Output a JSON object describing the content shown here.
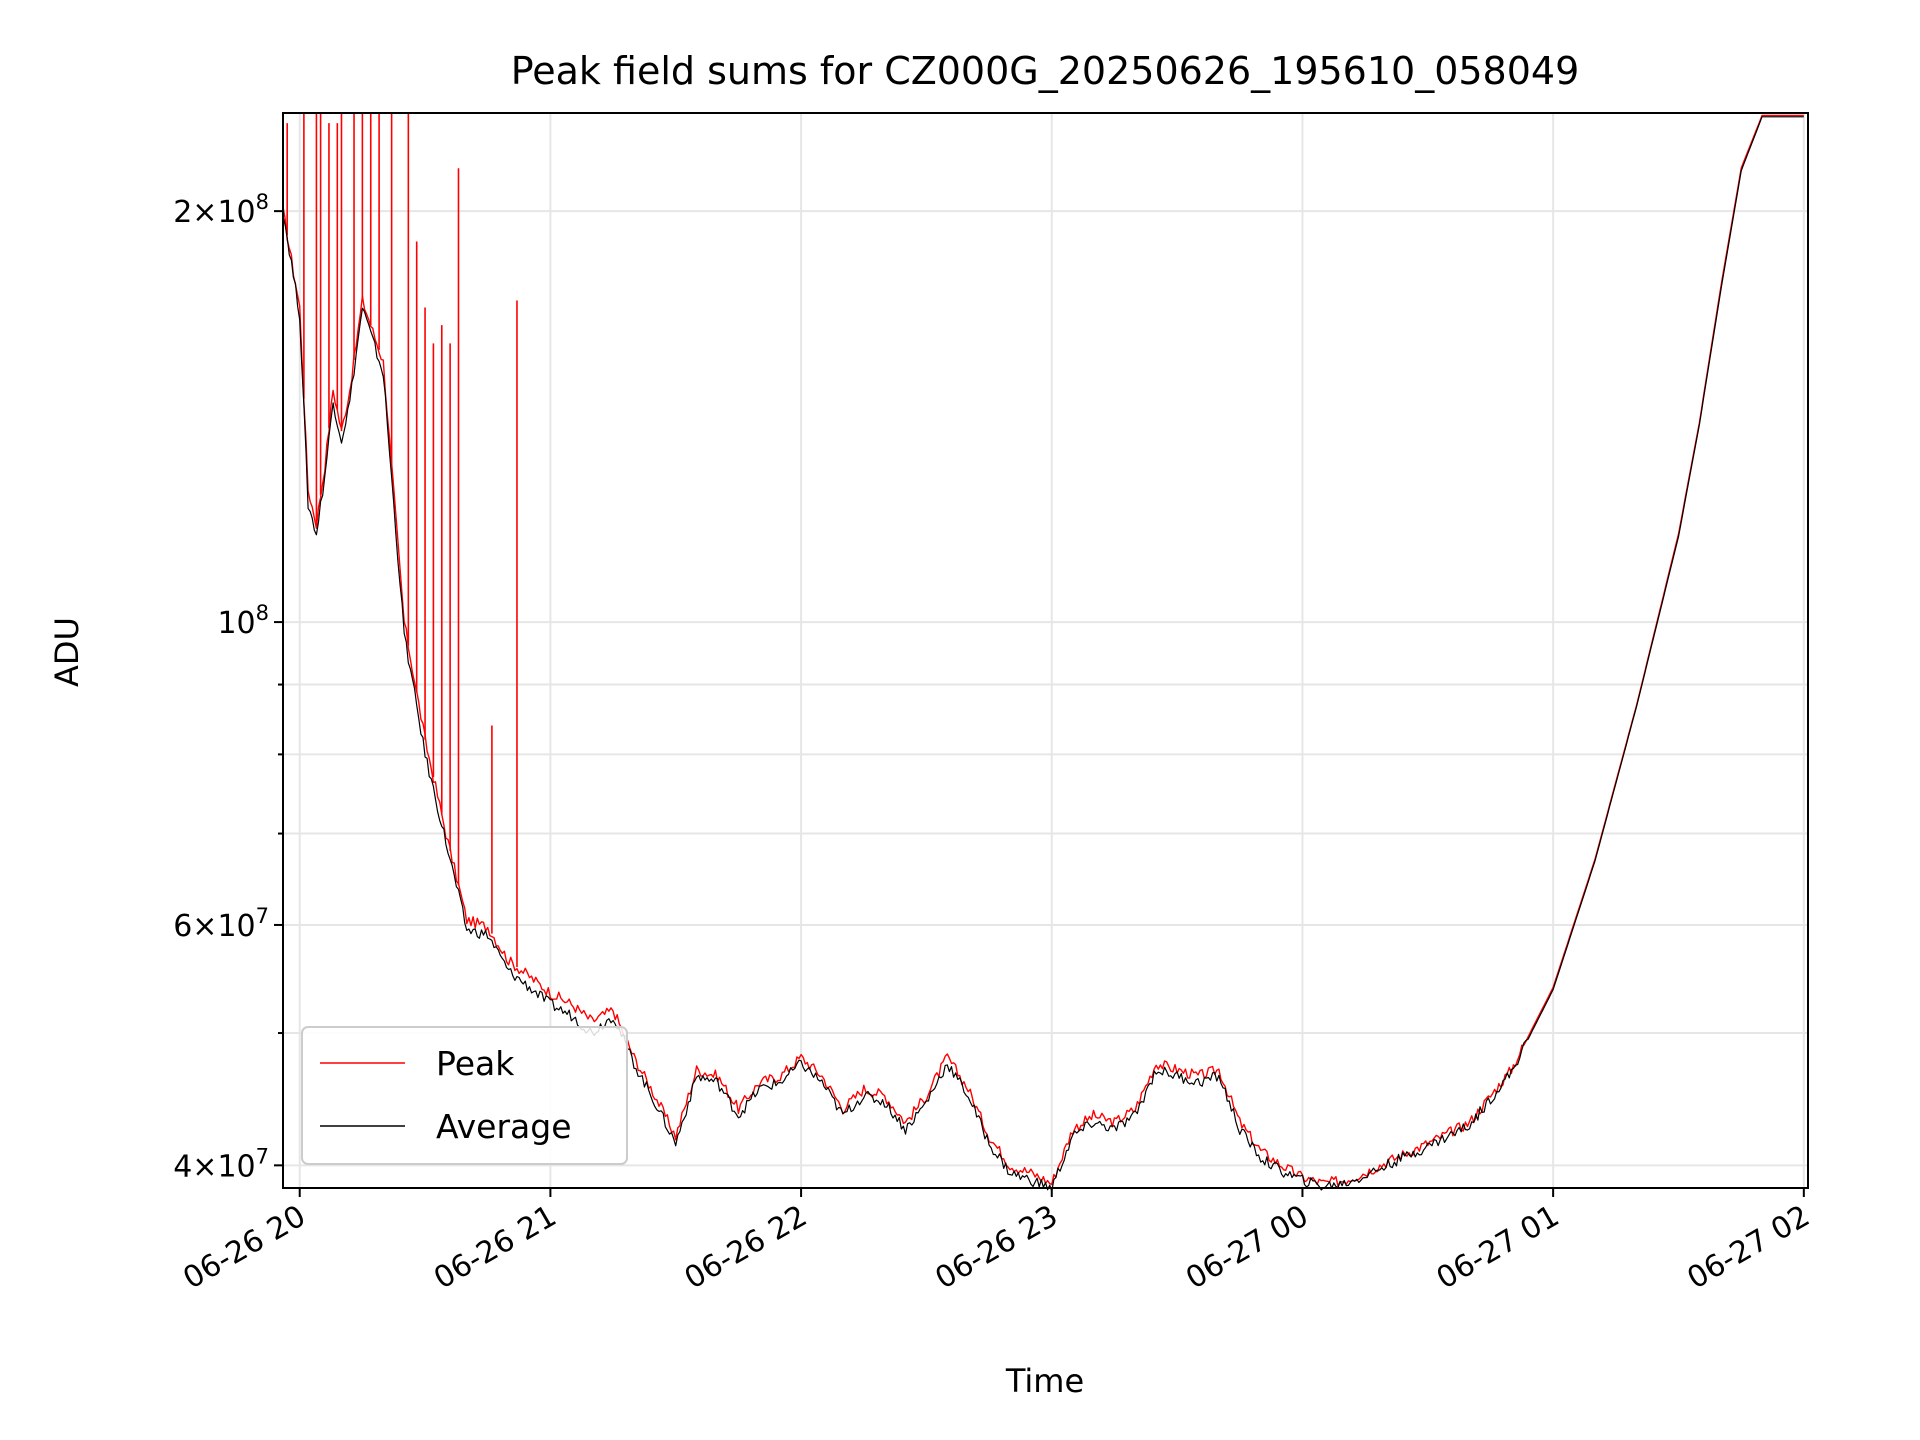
{
  "chart_data": {
    "type": "line",
    "title": "Peak field sums for CZ000G_20250626_195610_058049",
    "xlabel": "Time",
    "ylabel": "ADU",
    "yscale": "log",
    "ylim": [
      38500000,
      236000000
    ],
    "xlim": [
      "2025-06-26 19:56",
      "2025-06-27 02:01"
    ],
    "grid": true,
    "legend_position": "lower-left",
    "x_ticks": [
      "06-26 20",
      "06-26 21",
      "06-26 22",
      "06-26 23",
      "06-27 00",
      "06-27 01",
      "06-27 02"
    ],
    "y_ticks": [
      {
        "value": 40000000,
        "mant": "4",
        "exp": "7"
      },
      {
        "value": 60000000,
        "mant": "6",
        "exp": "7"
      },
      {
        "value": 100000000,
        "mant": "",
        "exp": "8"
      },
      {
        "value": 200000000,
        "mant": "2",
        "exp": "8"
      }
    ],
    "times": [
      "19:56",
      "20:00",
      "20:02",
      "20:04",
      "20:06",
      "20:08",
      "20:10",
      "20:12",
      "20:15",
      "20:20",
      "20:25",
      "20:30",
      "20:35",
      "20:40",
      "20:45",
      "20:50",
      "20:55",
      "21:00",
      "21:05",
      "21:10",
      "21:15",
      "21:20",
      "21:25",
      "21:30",
      "21:35",
      "21:40",
      "21:45",
      "21:50",
      "21:55",
      "22:00",
      "22:05",
      "22:10",
      "22:15",
      "22:20",
      "22:25",
      "22:30",
      "22:35",
      "22:40",
      "22:45",
      "22:50",
      "22:55",
      "23:00",
      "23:05",
      "23:10",
      "23:15",
      "23:20",
      "23:25",
      "23:30",
      "23:35",
      "23:40",
      "23:45",
      "23:50",
      "23:55",
      "00:00",
      "00:05",
      "00:10",
      "00:15",
      "00:20",
      "00:30",
      "00:40",
      "00:50",
      "01:00",
      "01:10",
      "01:20",
      "01:30",
      "01:35",
      "01:40",
      "01:45",
      "01:50",
      "02:00"
    ],
    "series": [
      {
        "name": "Peak",
        "color": "#ff0000",
        "values": [
          200000000,
          170000000,
          125000000,
          118000000,
          130000000,
          148000000,
          138000000,
          148000000,
          172000000,
          155000000,
          100000000,
          82000000,
          70000000,
          60500000,
          59800000,
          56500000,
          55000000,
          53500000,
          52500000,
          51000000,
          52000000,
          48000000,
          45000000,
          42000000,
          47000000,
          46500000,
          44000000,
          46000000,
          46500000,
          48000000,
          46500000,
          44000000,
          45500000,
          45000000,
          43000000,
          45000000,
          48000000,
          45500000,
          42000000,
          40000000,
          39500000,
          38800000,
          42500000,
          43500000,
          43000000,
          44000000,
          47500000,
          47000000,
          46500000,
          47000000,
          43000000,
          41000000,
          40000000,
          39200000,
          38800000,
          39000000,
          39500000,
          40200000,
          41500000,
          43000000,
          47000000,
          54000000,
          67000000,
          87000000,
          116000000,
          140000000,
          175000000,
          215000000,
          235000000,
          235000000
        ],
        "spikes": [
          {
            "t": "19:57",
            "v": 232000000
          },
          {
            "t": "20:01",
            "v": 236000000
          },
          {
            "t": "20:04",
            "v": 236000000
          },
          {
            "t": "20:05",
            "v": 236000000
          },
          {
            "t": "20:07",
            "v": 232000000
          },
          {
            "t": "20:09",
            "v": 232000000
          },
          {
            "t": "20:10",
            "v": 236000000
          },
          {
            "t": "20:13",
            "v": 236000000
          },
          {
            "t": "20:15",
            "v": 236000000
          },
          {
            "t": "20:17",
            "v": 236000000
          },
          {
            "t": "20:19",
            "v": 236000000
          },
          {
            "t": "20:22",
            "v": 236000000
          },
          {
            "t": "20:26",
            "v": 236000000
          },
          {
            "t": "20:28",
            "v": 190000000
          },
          {
            "t": "20:30",
            "v": 170000000
          },
          {
            "t": "20:32",
            "v": 160000000
          },
          {
            "t": "20:34",
            "v": 165000000
          },
          {
            "t": "20:36",
            "v": 160000000
          },
          {
            "t": "20:38",
            "v": 215000000
          },
          {
            "t": "20:46",
            "v": 84000000
          },
          {
            "t": "20:52",
            "v": 172000000
          }
        ]
      },
      {
        "name": "Average",
        "color": "#000000",
        "values": [
          200000000,
          168000000,
          122000000,
          116000000,
          128000000,
          145000000,
          136000000,
          145000000,
          170000000,
          152000000,
          98000000,
          80000000,
          69000000,
          59500000,
          59000000,
          55500000,
          54000000,
          52500000,
          51500000,
          50000000,
          51500000,
          47500000,
          44500000,
          41500000,
          46500000,
          46000000,
          43500000,
          45500000,
          46000000,
          47500000,
          46000000,
          43500000,
          45000000,
          44500000,
          42500000,
          44500000,
          47500000,
          45000000,
          41500000,
          39500000,
          39000000,
          38500000,
          42000000,
          43000000,
          42500000,
          43500000,
          47000000,
          46500000,
          46000000,
          46500000,
          42500000,
          40500000,
          39600000,
          39000000,
          38600000,
          38800000,
          39300000,
          40000000,
          41300000,
          42800000,
          46800000,
          53800000,
          66800000,
          86800000,
          115500000,
          139500000,
          174000000,
          214000000,
          234500000,
          234500000
        ]
      }
    ]
  }
}
